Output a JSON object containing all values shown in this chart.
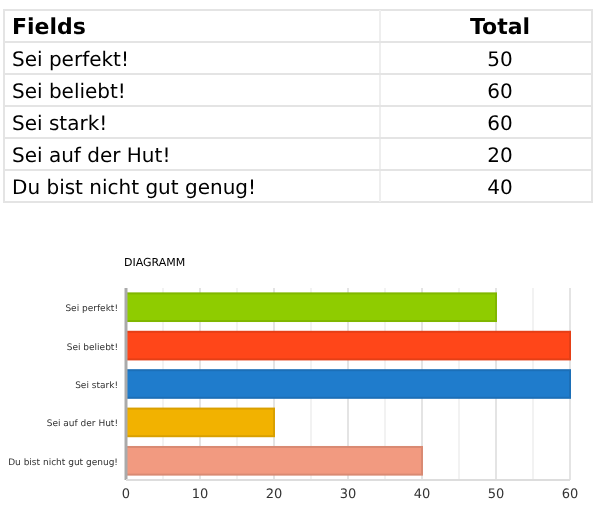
{
  "chart_data": [
    {
      "type": "other",
      "annotations": [
        "Fields",
        "Total"
      ],
      "categories": [
        "Sei perfekt!",
        "Sei beliebt!",
        "Sei stark!",
        "Sei auf der Hut!",
        "Du bist nicht gut genug!"
      ],
      "values": [
        50,
        60,
        60,
        20,
        40
      ],
      "data_labels": true
    },
    {
      "type": "bar",
      "orientation": "horizontal",
      "title": "DIAGRAMM",
      "categories": [
        "Sei perfekt!",
        "Sei beliebt!",
        "Sei stark!",
        "Sei auf der Hut!",
        "Du bist nicht gut genug!"
      ],
      "values": [
        50,
        60,
        60,
        20,
        40
      ],
      "colors": [
        "#8fcc00",
        "#ff4619",
        "#1f7ccc",
        "#f2b200",
        "#f29a80"
      ],
      "xlim": [
        0,
        60
      ],
      "xticks": [
        0,
        {
          "value": 5,
          "label": null
        },
        10,
        {
          "value": 15,
          "label": null
        },
        20,
        {
          "value": 25,
          "label": null
        },
        30,
        {
          "value": 35,
          "label": null
        },
        40,
        {
          "value": 45,
          "label": null
        },
        50,
        {
          "value": 55,
          "label": null
        },
        60
      ],
      "grid": "x"
    }
  ]
}
